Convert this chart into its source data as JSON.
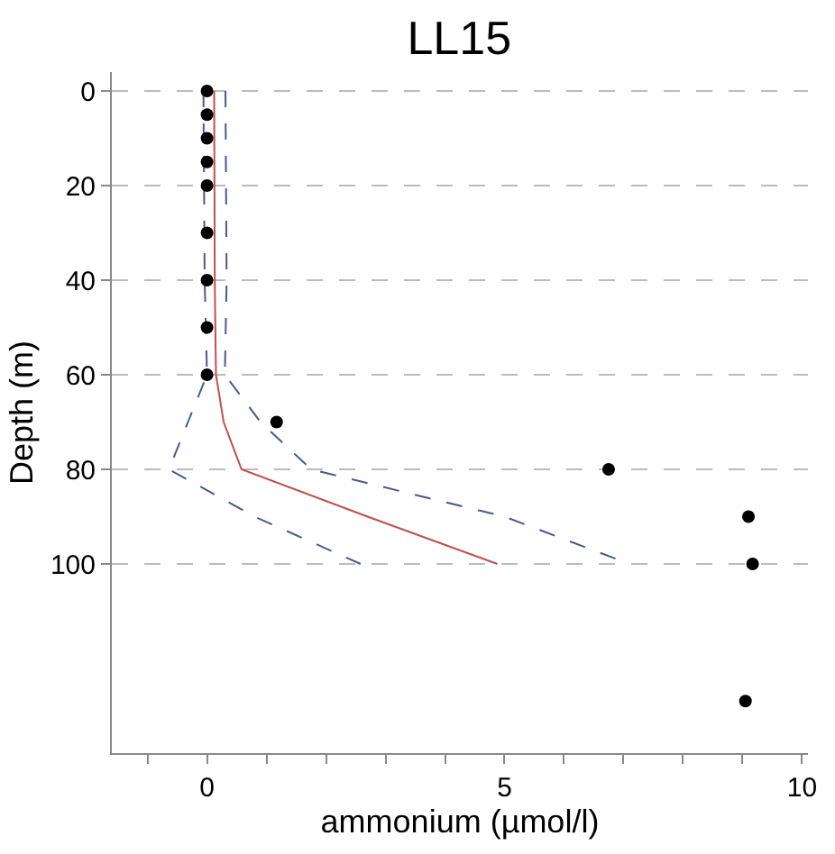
{
  "chart_data": {
    "type": "line",
    "title": "LL15",
    "xlabel": "ammonium (µmol/l)",
    "ylabel": "Depth (m)",
    "xlim": [
      -1.6,
      10.1
    ],
    "ylim": [
      140,
      -4
    ],
    "xticks": [
      {
        "value": -1,
        "label": null
      },
      0,
      {
        "value": 1,
        "label": null
      },
      {
        "value": 2,
        "label": null
      },
      {
        "value": 3,
        "label": null
      },
      {
        "value": 4,
        "label": null
      },
      5,
      {
        "value": 6,
        "label": null
      },
      {
        "value": 7,
        "label": null
      },
      {
        "value": 8,
        "label": null
      },
      {
        "value": 9,
        "label": null
      },
      10
    ],
    "yticks": [
      0,
      20,
      40,
      60,
      80,
      100
    ],
    "grid": "y",
    "series": [
      {
        "color": "#c0504d",
        "line_style": "solid",
        "marker": "none",
        "x": [
          0.12,
          0.13,
          0.15,
          0.28,
          0.58,
          2.7,
          4.88
        ],
        "values": [
          0,
          40,
          60,
          70,
          80,
          90,
          100
        ]
      },
      {
        "color": "#4a5a8a",
        "line_style": "dashed",
        "marker": "none",
        "x": [
          -0.06,
          -0.04,
          0.0,
          -0.32,
          -0.64,
          0.8,
          2.58
        ],
        "values": [
          0,
          40,
          60,
          70,
          80,
          90,
          100
        ]
      },
      {
        "color": "#4a5a8a",
        "line_style": "dashed",
        "marker": "none",
        "x": [
          0.31,
          0.33,
          0.3,
          0.9,
          1.75,
          5.0,
          7.1
        ],
        "values": [
          0,
          40,
          60,
          70,
          80,
          90,
          100
        ]
      },
      {
        "type": "scatter",
        "color": "#000000",
        "marker": "circle",
        "x": [
          0,
          0,
          0,
          0,
          0,
          0,
          0,
          0,
          0,
          1.17,
          6.75,
          9.1,
          9.17,
          9.05
        ],
        "values": [
          0,
          5,
          10,
          15,
          20,
          30,
          40,
          50,
          60,
          70,
          80,
          90,
          100,
          129
        ]
      }
    ]
  }
}
